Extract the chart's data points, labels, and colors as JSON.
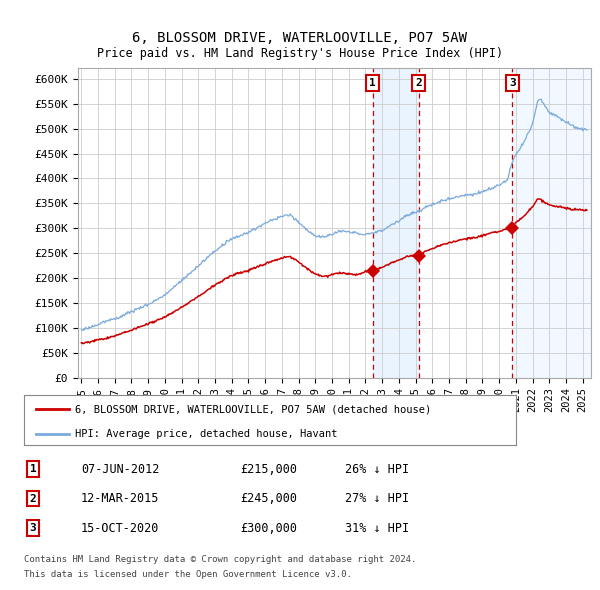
{
  "title": "6, BLOSSOM DRIVE, WATERLOOVILLE, PO7 5AW",
  "subtitle": "Price paid vs. HM Land Registry's House Price Index (HPI)",
  "ylabel_ticks": [
    "£0",
    "£50K",
    "£100K",
    "£150K",
    "£200K",
    "£250K",
    "£300K",
    "£350K",
    "£400K",
    "£450K",
    "£500K",
    "£550K",
    "£600K"
  ],
  "ylim": [
    0,
    620000
  ],
  "xlim_start": 1994.8,
  "xlim_end": 2025.5,
  "legend_house": "6, BLOSSOM DRIVE, WATERLOOVILLE, PO7 5AW (detached house)",
  "legend_hpi": "HPI: Average price, detached house, Havant",
  "transactions": [
    {
      "label": "1",
      "date": "07-JUN-2012",
      "price": "£215,000",
      "hpi": "26% ↓ HPI",
      "x": 2012.44
    },
    {
      "label": "2",
      "date": "12-MAR-2015",
      "price": "£245,000",
      "hpi": "27% ↓ HPI",
      "x": 2015.19
    },
    {
      "label": "3",
      "date": "15-OCT-2020",
      "price": "£300,000",
      "hpi": "31% ↓ HPI",
      "x": 2020.79
    }
  ],
  "sale_prices": [
    215000,
    245000,
    300000
  ],
  "footnote1": "Contains HM Land Registry data © Crown copyright and database right 2024.",
  "footnote2": "This data is licensed under the Open Government Licence v3.0.",
  "hpi_color": "#7aaadd",
  "house_color": "#cc0000",
  "dashed_color": "#cc0000",
  "bg_shade_color": "#ddeeff",
  "grid_color": "#cccccc"
}
